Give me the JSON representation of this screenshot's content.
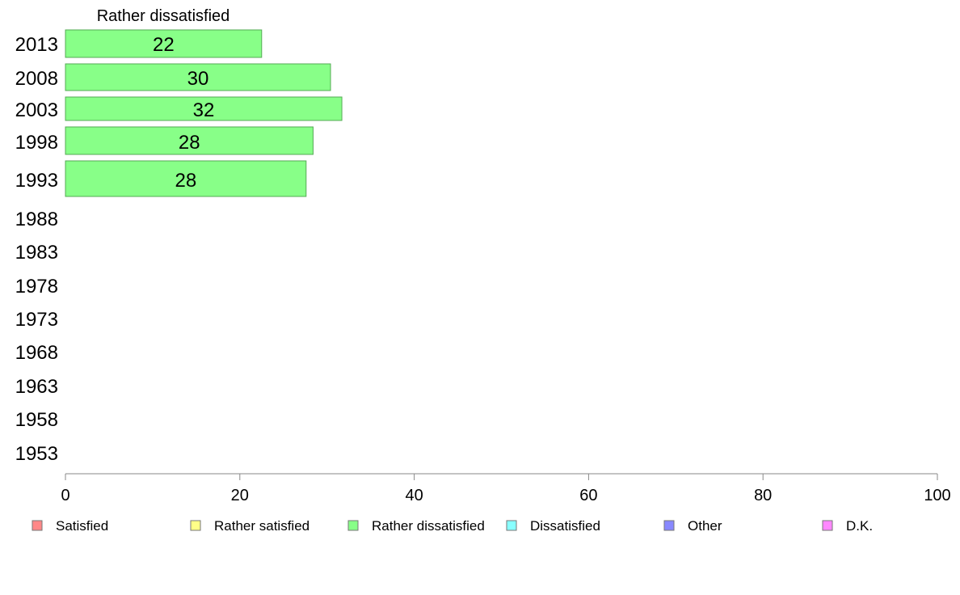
{
  "chart_data": {
    "type": "bar",
    "orientation": "horizontal",
    "title": "Rather dissatisfied",
    "categories": [
      "2013",
      "2008",
      "2003",
      "1998",
      "1993",
      "1988",
      "1983",
      "1978",
      "1973",
      "1968",
      "1963",
      "1958",
      "1953"
    ],
    "series": [
      {
        "name": "Rather dissatisfied",
        "color": "#88ff88",
        "values": [
          22.5,
          30.4,
          31.7,
          28.4,
          27.6,
          null,
          null,
          null,
          null,
          null,
          null,
          null,
          null
        ],
        "labels": [
          "22",
          "30",
          "32",
          "28",
          "28",
          null,
          null,
          null,
          null,
          null,
          null,
          null,
          null
        ]
      }
    ],
    "xlim": [
      0,
      100
    ],
    "xticks": [
      0,
      20,
      40,
      60,
      80,
      100
    ],
    "grid": false,
    "legend": {
      "position": "bottom",
      "items": [
        {
          "name": "Satisfied",
          "color": "#ff8888"
        },
        {
          "name": "Rather satisfied",
          "color": "#ffff88"
        },
        {
          "name": "Rather dissatisfied",
          "color": "#88ff88"
        },
        {
          "name": "Dissatisfied",
          "color": "#88ffff"
        },
        {
          "name": "Other",
          "color": "#8888ff"
        },
        {
          "name": "D.K.",
          "color": "#ff88ff"
        }
      ]
    }
  }
}
